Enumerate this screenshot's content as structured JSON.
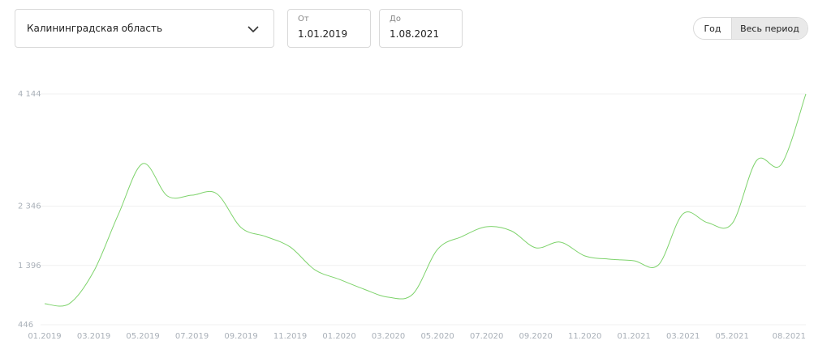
{
  "controls": {
    "region": "Калининградская область",
    "from": {
      "label": "От",
      "value": "1.01.2019"
    },
    "to": {
      "label": "До",
      "value": "1.08.2021"
    },
    "period_options": [
      "Год",
      "Весь период"
    ]
  },
  "chart_data": {
    "type": "line",
    "categories": [
      "01.2019",
      null,
      "03.2019",
      null,
      "05.2019",
      null,
      "07.2019",
      null,
      "09.2019",
      null,
      "11.2019",
      null,
      "01.2020",
      null,
      "03.2020",
      null,
      "05.2020",
      null,
      "07.2020",
      null,
      "09.2020",
      null,
      "11.2020",
      null,
      "01.2021",
      null,
      "03.2021",
      null,
      "05.2021",
      null,
      null,
      "08.2021"
    ],
    "series": [
      {
        "color": "#7ed36c",
        "values": [
          783,
          783,
          1302,
          2211,
          3028,
          2509,
          2522,
          2548,
          2003,
          1860,
          1692,
          1328,
          1173,
          1017,
          887,
          939,
          1653,
          1860,
          2016,
          1951,
          1679,
          1770,
          1549,
          1497,
          1471,
          1406,
          2224,
          2081,
          2068,
          3080,
          3015,
          4144
        ]
      }
    ],
    "ylim": [
      446,
      4144
    ],
    "yticks": [
      446,
      {
        "value": 1396,
        "label": "1 396"
      },
      {
        "value": 2346,
        "label": "2 346"
      },
      {
        "value": 4144,
        "label": "4 144"
      }
    ],
    "grid": true
  }
}
